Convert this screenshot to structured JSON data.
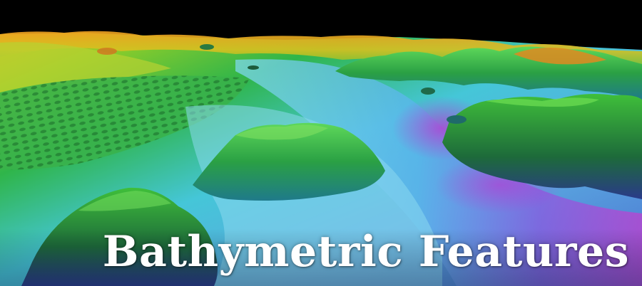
{
  "banner": {
    "title": "Bathymetric Features"
  },
  "colors": {
    "sky": "#000000",
    "shallow": "#e8c020",
    "mid": "#30b040",
    "deep": "#40c0e0",
    "deepest": "#9030d0",
    "title_text": "#ffffff"
  }
}
